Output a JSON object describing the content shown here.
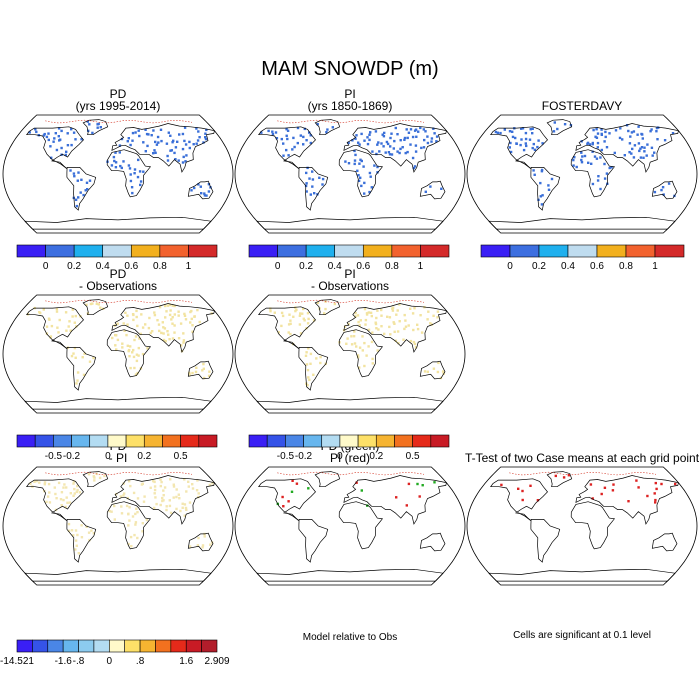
{
  "chart_data": {
    "type": "map",
    "title": "MAM SNOWDP (m)",
    "panels": [
      {
        "id": "pd",
        "title": [
          "PD",
          "(yrs 1995-2014)"
        ],
        "field": "snow-depth",
        "dot_color": "#3a6fd8",
        "dot_density": "medium"
      },
      {
        "id": "pi",
        "title": [
          "PI",
          "(yrs 1850-1869)"
        ],
        "field": "snow-depth",
        "dot_color": "#3a6fd8",
        "dot_density": "medium"
      },
      {
        "id": "obs",
        "title": [
          "FOSTERDAVY"
        ],
        "field": "snow-depth",
        "dot_color": "#3a6fd8",
        "dot_density": "medium"
      },
      {
        "id": "pd_obs",
        "title": [
          "PD",
          "- Observations"
        ],
        "field": "difference",
        "dot_color": "#f2e3a0",
        "dot_density": "medium"
      },
      {
        "id": "pi_obs",
        "title": [
          "PI",
          "- Observations"
        ],
        "field": "difference",
        "dot_color": "#f2e3a0",
        "dot_density": "medium"
      },
      {
        "id": "pd_pi",
        "title": [
          "PD",
          "- PI"
        ],
        "field": "difference",
        "dot_color": "#f3e6b0",
        "dot_density": "medium"
      },
      {
        "id": "overlay",
        "title": [
          "PD (green)",
          "PI (red)"
        ],
        "field": "overlay",
        "dot_color": "#22aa22",
        "dot_color2": "#dd2222",
        "dot_density": "low"
      },
      {
        "id": "ttest",
        "title": [
          "T-Test of two Case means at each grid point"
        ],
        "field": "significance",
        "dot_color": "#dd2222",
        "dot_density": "low"
      }
    ],
    "colorbars": [
      {
        "id": "cb_abs",
        "colors": [
          "#3a1ff5",
          "#3d6fe0",
          "#1fb0ee",
          "#bfdcef",
          "#f2b01e",
          "#f2622e",
          "#d42a2a"
        ],
        "tick_labels": [
          "0",
          "0.2",
          "0.4",
          "0.6",
          "0.8",
          "1"
        ]
      },
      {
        "id": "cb_diff",
        "colors": [
          "#3a1ff5",
          "#3553e8",
          "#4a86e6",
          "#67b6ee",
          "#b3dcf2",
          "#fffaca",
          "#fde068",
          "#f6b431",
          "#f2711f",
          "#e52a1a",
          "#c81b25"
        ],
        "tick_labels": [
          "-0.5",
          "-0.2",
          "0",
          "0.2",
          "0.5"
        ]
      },
      {
        "id": "cb_pdpi",
        "colors": [
          "#3a1ff5",
          "#3553e8",
          "#4a86e6",
          "#67b6ee",
          "#8ccbef",
          "#b3dcf2",
          "#fffaca",
          "#fde068",
          "#f6b431",
          "#f2711f",
          "#e52a1a",
          "#c81b25",
          "#b21d2b"
        ],
        "tick_labels": [
          "-14.521",
          "-1.6",
          "-.8",
          "0",
          ".8",
          "1.6",
          "2.909"
        ]
      }
    ],
    "footnotes": {
      "overlay": "Model relative to Obs",
      "ttest": "Cells are significant at 0.1 level"
    }
  }
}
